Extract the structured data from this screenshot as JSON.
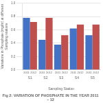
{
  "chart_data": {
    "type": "bar",
    "title": "Fig 2: VARIATION OF PHOSPHATE IN THE YEAR 2011 – 12",
    "xlabel": "Sampling Station",
    "ylabel": "Variations in Phosphate (mg/ltr) at different Sampling stations",
    "categories": [
      "S1",
      "S2",
      "S3",
      "S4",
      "S5"
    ],
    "series": [
      {
        "name": "2011",
        "color": "#4472C4",
        "values": [
          0.78,
          0.45,
          0.38,
          0.62,
          0.52
        ]
      },
      {
        "name": "2012",
        "color": "#C0504D",
        "values": [
          0.72,
          0.78,
          0.52,
          0.68,
          0.68
        ]
      }
    ],
    "ylim": [
      0,
      1.0
    ],
    "yticks": [
      {
        "value": 0,
        "label": "0.0"
      },
      0.2,
      0.4,
      0.6,
      0.8,
      {
        "value": 1.0,
        "label": "1.0"
      }
    ],
    "grid": true
  }
}
